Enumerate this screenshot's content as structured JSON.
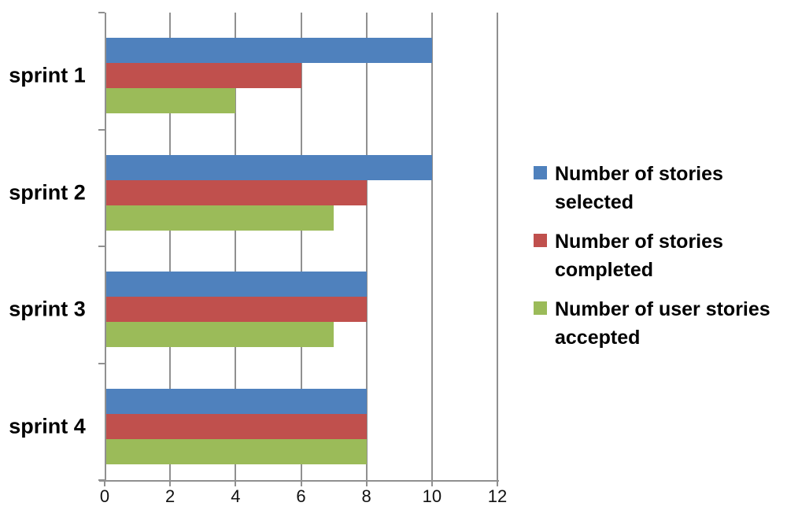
{
  "chart_data": {
    "type": "bar",
    "orientation": "horizontal",
    "title": "",
    "categories": [
      "sprint 1",
      "sprint 2",
      "sprint 3",
      "sprint 4"
    ],
    "series": [
      {
        "name": "Number of stories selected",
        "color": "#4F81BD",
        "values": [
          10,
          10,
          8,
          8
        ]
      },
      {
        "name": "Number of stories completed",
        "color": "#C0504D",
        "values": [
          6,
          8,
          8,
          8
        ]
      },
      {
        "name": "Number of user stories accepted",
        "color": "#9BBB59",
        "values": [
          4,
          7,
          7,
          8
        ]
      }
    ],
    "xlim": [
      0,
      12
    ],
    "xticks": [
      "0",
      "2",
      "4",
      "6",
      "8",
      "10",
      "12"
    ],
    "grid": "vertical-gridlines",
    "legend_position": "right",
    "axis_color": "#909090",
    "text_color": "#000000",
    "background": "#FFFFFF"
  }
}
